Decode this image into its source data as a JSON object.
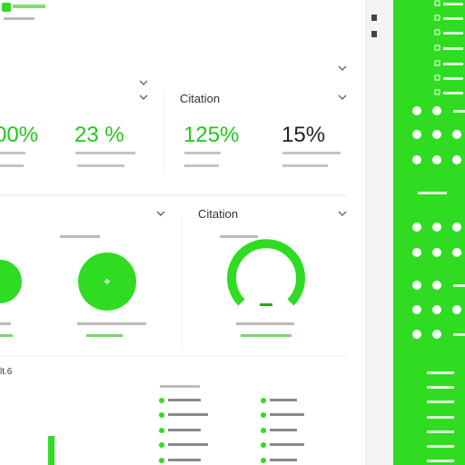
{
  "cards": {
    "top_right_title": "Citation",
    "middle_right_title": "Citation"
  },
  "metrics": [
    "00%",
    "23 %",
    "125%",
    "15%"
  ],
  "bottom_section_label": "lt.6"
}
